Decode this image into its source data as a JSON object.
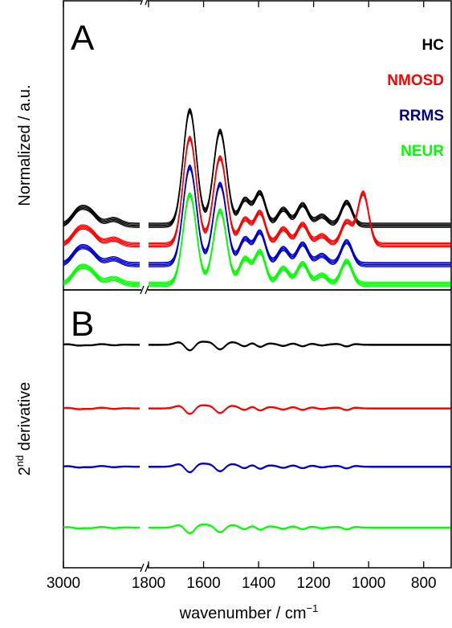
{
  "chart_data": {
    "type": "line",
    "x_axis": {
      "label_main": "wavenumber / cm",
      "label_sup": "−1",
      "ticks": [
        "3000",
        "1800",
        "1600",
        "1400",
        "1200",
        "1000",
        "800"
      ],
      "tick_values": [
        3000,
        1800,
        1600,
        1400,
        1200,
        1000,
        800
      ],
      "segment_left_range": [
        3000,
        2800
      ],
      "segment_right_range": [
        1800,
        700
      ],
      "reversed": true,
      "broken": true
    },
    "panels": [
      {
        "letter": "A",
        "ylabel": "Normalized / a.u.",
        "legend": [
          {
            "name": "HC",
            "color": "#000000"
          },
          {
            "name": "NMOSD",
            "color": "#ff0000"
          },
          {
            "name": "RRMS",
            "color": "#00008b"
          },
          {
            "name": "NEUR",
            "color": "#00ff00"
          }
        ],
        "series": [
          {
            "name": "HC",
            "color": "#000000",
            "offset": 0.74,
            "bands": [
              [
                1650,
                1.0
              ],
              [
                1540,
                0.82
              ],
              [
                1450,
                0.22
              ],
              [
                1395,
                0.28
              ],
              [
                1310,
                0.14
              ],
              [
                1240,
                0.18
              ],
              [
                1170,
                0.08
              ],
              [
                1080,
                0.2
              ],
              [
                2960,
                0.12
              ],
              [
                2930,
                0.1
              ],
              [
                2870,
                0.05
              ]
            ]
          },
          {
            "name": "NMOSD",
            "color": "#ff0000",
            "offset": 0.5,
            "bands": [
              [
                1650,
                0.93
              ],
              [
                1540,
                0.76
              ],
              [
                1450,
                0.22
              ],
              [
                1395,
                0.28
              ],
              [
                1310,
                0.14
              ],
              [
                1240,
                0.18
              ],
              [
                1170,
                0.08
              ],
              [
                1080,
                0.2
              ],
              [
                1020,
                0.45
              ],
              [
                2960,
                0.12
              ],
              [
                2930,
                0.1
              ],
              [
                2870,
                0.05
              ]
            ]
          },
          {
            "name": "RRMS",
            "color": "#0000cd",
            "offset": 0.26,
            "bands": [
              [
                1650,
                0.85
              ],
              [
                1540,
                0.7
              ],
              [
                1450,
                0.22
              ],
              [
                1395,
                0.28
              ],
              [
                1310,
                0.14
              ],
              [
                1240,
                0.18
              ],
              [
                1170,
                0.08
              ],
              [
                1080,
                0.2
              ],
              [
                2960,
                0.12
              ],
              [
                2930,
                0.1
              ],
              [
                2870,
                0.05
              ]
            ]
          },
          {
            "name": "NEUR",
            "color": "#00ff00",
            "offset": 0.02,
            "bands": [
              [
                1650,
                0.78
              ],
              [
                1540,
                0.64
              ],
              [
                1450,
                0.22
              ],
              [
                1395,
                0.28
              ],
              [
                1310,
                0.14
              ],
              [
                1240,
                0.18
              ],
              [
                1170,
                0.08
              ],
              [
                1080,
                0.2
              ],
              [
                2960,
                0.12
              ],
              [
                2930,
                0.1
              ],
              [
                2870,
                0.05
              ]
            ]
          }
        ]
      },
      {
        "letter": "B",
        "ylabel_main": "2",
        "ylabel_sup": "nd",
        "ylabel_rest": " derivative",
        "series": [
          {
            "name": "HC",
            "color": "#000000",
            "offset": 0.82
          },
          {
            "name": "NMOSD",
            "color": "#ff0000",
            "offset": 0.58
          },
          {
            "name": "RRMS",
            "color": "#0000cd",
            "offset": 0.36
          },
          {
            "name": "NEUR",
            "color": "#00ff00",
            "offset": 0.13
          }
        ]
      }
    ]
  }
}
